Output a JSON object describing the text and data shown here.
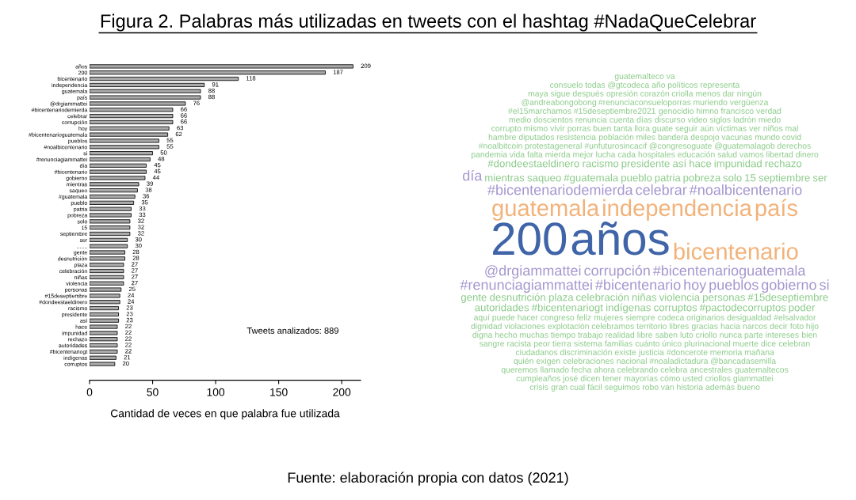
{
  "chart_data": [
    {
      "type": "bar",
      "orientation": "horizontal",
      "title": "Figura 2. Palabras más utilizadas en tweets con el hashtag #NadaQueCelebrar",
      "xlabel": "Cantidad de veces en que palabra fue utilizada",
      "categories": [
        "años",
        "200",
        "bicentenario",
        "independencia",
        "guatemala",
        "país",
        "@drgiammattei",
        "#bicentenariodemierda",
        "celebrar",
        "corrupción",
        "hoy",
        "#bicentenarioguatemala",
        "pueblos",
        "#noalbicentenario",
        "si",
        "#renunciagiammattei",
        "día",
        "#bicentenario",
        "gobierno",
        "mientras",
        "saqueo",
        "#guatemala",
        "pueblo",
        "patria",
        "pobreza",
        "solo",
        "15",
        "septiembre",
        "ser",
        ".......",
        "gente",
        "desnutrición",
        "plaza",
        "celebración",
        "niñas",
        "violencia",
        "personas",
        "#15deseptiembre",
        "#dondeestaeldinero",
        "racismo",
        "presidente",
        "así",
        "hace",
        "impunidad",
        "rechazo",
        "autoridades",
        "#bicentenariogt",
        "indígenas",
        "corruptos"
      ],
      "values": [
        209,
        187,
        118,
        91,
        88,
        88,
        76,
        66,
        66,
        66,
        63,
        62,
        55,
        55,
        50,
        48,
        45,
        45,
        44,
        39,
        38,
        36,
        35,
        33,
        33,
        32,
        32,
        32,
        30,
        30,
        28,
        28,
        27,
        27,
        27,
        27,
        25,
        24,
        24,
        23,
        23,
        23,
        22,
        22,
        22,
        22,
        22,
        21,
        20
      ],
      "color": "#a9a9a9",
      "data_labels": true,
      "xlim": [
        0,
        215
      ],
      "xticks": [
        0,
        50,
        100,
        150,
        200
      ],
      "grid": false,
      "annotations": [
        "Tweets analizados: 889",
        "Fuente: elaboración propia con datos (2021)"
      ]
    },
    {
      "type": "other",
      "annotations": [
        "200",
        "años",
        "bicentenario",
        "guatemala",
        "independencia",
        "país",
        "@drgiammattei",
        "corrupción",
        "#bicentenarioguatemala",
        "#bicentenariodemierda",
        "celebrar",
        "#noalbicentenario",
        "#renunciagiammattei",
        "#bicentenario",
        "hoy",
        "pueblos",
        "gobierno",
        "si",
        "día",
        "mientras",
        "saqueo",
        "#guatemala",
        "pueblo",
        "patria",
        "pobreza",
        "solo",
        "15",
        "septiembre",
        "ser",
        "gente",
        "desnutrición",
        "plaza",
        "celebración",
        "niñas",
        "violencia",
        "personas",
        "#15deseptiembre",
        "#dondeestaeldinero",
        "racismo",
        "presidente",
        "así",
        "hace",
        "impunidad",
        "rechazo",
        "autoridades",
        "#bicentenariogt",
        "indígenas",
        "corruptos",
        "#pactodecorruptos",
        "poder",
        "pandemia",
        "vida",
        "falta",
        "mierda",
        "mejor",
        "lucha",
        "cada",
        "hospitales",
        "educación",
        "salud",
        "vamos",
        "libertad",
        "dinero",
        "aquí",
        "puede",
        "hacer",
        "congreso",
        "feliz",
        "mujeres",
        "siempre",
        "codeca",
        "originarios",
        "desigualdad",
        "#elsalvador",
        "#noalbitcoin",
        "protestageneral",
        "#unfuturosincacif",
        "@congresoguate",
        "@guatemalagob",
        "derechos",
        "dignidad",
        "violaciones",
        "explotación",
        "celebramos",
        "territorio",
        "libres",
        "gracias",
        "hacia",
        "narcos",
        "decir",
        "foto",
        "hijo",
        "hambre",
        "diputados",
        "resistencia",
        "población",
        "miles",
        "bandera",
        "despojo",
        "vacunas",
        "mundo",
        "covid",
        "digna",
        "hecho",
        "muchas",
        "tiempo",
        "trabajo",
        "realidad",
        "libre",
        "saben",
        "luto",
        "criollo",
        "nunca",
        "parte",
        "intereses",
        "bien",
        "corrupto",
        "mismo",
        "vivir",
        "porras",
        "buen",
        "tanta",
        "llora",
        "guate",
        "seguir",
        "aún",
        "víctimas",
        "ver",
        "niños",
        "mal",
        "sangre",
        "racista",
        "peor",
        "tierra",
        "sistema",
        "familias",
        "cuánto",
        "único",
        "plurinacional",
        "muerte",
        "dice",
        "celebran",
        "medio",
        "doscientos",
        "renuncia",
        "cuenta",
        "días",
        "discurso",
        "video",
        "siglos",
        "ladrón",
        "miedo",
        "ciudadanos",
        "discriminación",
        "existe",
        "justicia",
        "#doncerote",
        "memoria",
        "mañana",
        "#el15marchamos",
        "#15deseptiembre2021",
        "genocidio",
        "himno",
        "francisco",
        "verdad",
        "quién",
        "exigen",
        "celebraciones",
        "nacional",
        "#noaladictadura",
        "@bancadasemilla",
        "@andreabongobong",
        "#renunciaconsueloporras",
        "muriendo",
        "vergüenza",
        "queremos",
        "llamado",
        "fecha",
        "ahora",
        "celebrando",
        "celebra",
        "ancestrales",
        "guatemaltecos",
        "maya",
        "sigue",
        "después",
        "opresión",
        "corazón",
        "criolla",
        "menos",
        "dar",
        "ningún",
        "cumpleaños",
        "josé",
        "dicen",
        "tener",
        "mayorías",
        "cómo",
        "usted",
        "criollos",
        "giammattei",
        "consuelo",
        "todas",
        "@gtcodeca",
        "año",
        "políticos",
        "representa",
        "crisis",
        "gran",
        "cual",
        "fácil",
        "seguimos",
        "robo",
        "van",
        "historia",
        "además",
        "bueno",
        "guatemalteco",
        "va"
      ]
    }
  ]
}
